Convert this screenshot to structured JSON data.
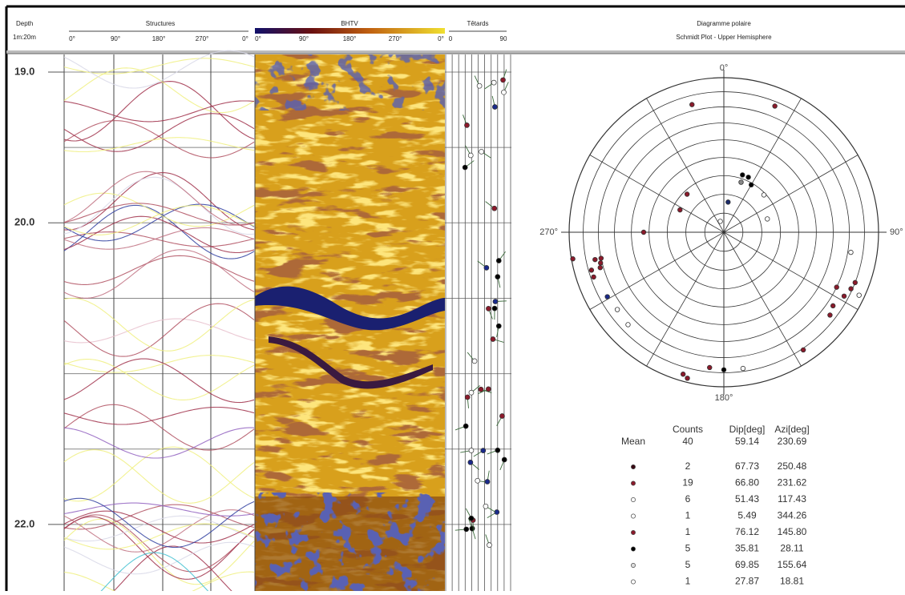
{
  "header": {
    "depth": "Depth",
    "scale": "1m:20m",
    "structures": {
      "title": "Structures",
      "ticks": [
        "0°",
        "90°",
        "180°",
        "270°",
        "0°"
      ]
    },
    "bhtv": {
      "title": "BHTV",
      "ticks": [
        "0°",
        "90°",
        "180°",
        "270°",
        "0°"
      ]
    },
    "tadpoles": {
      "title": "Têtards",
      "ticks": [
        "0",
        "90"
      ]
    },
    "polar": {
      "title": "Diagramme polaire",
      "subtitle": "Schmidt Plot - Upper Hemisphere"
    }
  },
  "depth_ticks": [
    {
      "value": 19,
      "label": "19.0"
    },
    {
      "value": 20,
      "label": "20.0"
    },
    {
      "value": 22,
      "label": "22.0"
    }
  ],
  "chart_data": {
    "type": "polar-scatter",
    "axis_labels": [
      "0°",
      "90°",
      "180°",
      "270°"
    ],
    "rlim": [
      0,
      90
    ],
    "points": {
      "azimuth": [
        346,
        22,
        18,
        24,
        30,
        19,
        47,
        8,
        73,
        342,
        316,
        297,
        270,
        260,
        258,
        256,
        258,
        254,
        251,
        254,
        241,
        234,
        226,
        99,
        111,
        115,
        114,
        118,
        116,
        124,
        128,
        146,
        196,
        194,
        180,
        172,
        186
      ],
      "dip": [
        74,
        77,
        32,
        32,
        29,
        28,
        29,
        16,
        24,
        6,
        28,
        26,
        43,
        89,
        74,
        71,
        70,
        78,
        78,
        72,
        75,
        74,
        75,
        72,
        80,
        86,
        79,
        77,
        70,
        74,
        76,
        81,
        85,
        87,
        78,
        78,
        77
      ],
      "fill": [
        "#8b1a2b",
        "#8b1a2b",
        "#000000",
        "#000000",
        "#000000",
        "#888888",
        "#ffffff",
        "#1a2a6a",
        "#ffffff",
        "#ffffff",
        "#8b1a2b",
        "#8b1a2b",
        "#8b1a2b",
        "#8b1a2b",
        "#8b1a2b",
        "#8b1a2b",
        "#8b1a2b",
        "#8b1a2b",
        "#8b1a2b",
        "#8b1a2b",
        "#1a2a8a",
        "#ffffff",
        "#ffffff",
        "#ffffff",
        "#8b1a2b",
        "#ffffff",
        "#8b1a2b",
        "#8b1a2b",
        "#8b1a2b",
        "#8b1a2b",
        "#8b1a2b",
        "#8b1a2b",
        "#8b1a2b",
        "#8b1a2b",
        "#000000",
        "#ffffff",
        "#8b1a2b"
      ]
    }
  },
  "stats": {
    "columns": [
      "Counts",
      "Dip[deg]",
      "Azi[deg]"
    ],
    "mean": {
      "label": "Mean",
      "values": [
        "40",
        "59.14",
        "230.69"
      ]
    },
    "rows": [
      {
        "color": "#3a0a14",
        "values": [
          "2",
          "67.73",
          "250.48"
        ]
      },
      {
        "color": "#8b1a2b",
        "values": [
          "19",
          "66.80",
          "231.62"
        ]
      },
      {
        "color": "#ffffff",
        "values": [
          "6",
          "51.43",
          "117.43"
        ]
      },
      {
        "color": "#ffffff",
        "values": [
          "1",
          "5.49",
          "344.26"
        ]
      },
      {
        "color": "#8b1a2b",
        "values": [
          "1",
          "76.12",
          "145.80"
        ]
      },
      {
        "color": "#000000",
        "values": [
          "5",
          "35.81",
          "28.11"
        ]
      },
      {
        "color": "#dddddd",
        "values": [
          "5",
          "69.85",
          "155.64"
        ]
      },
      {
        "color": "#ffffff",
        "values": [
          "1",
          "27.87",
          "18.81"
        ]
      }
    ]
  }
}
